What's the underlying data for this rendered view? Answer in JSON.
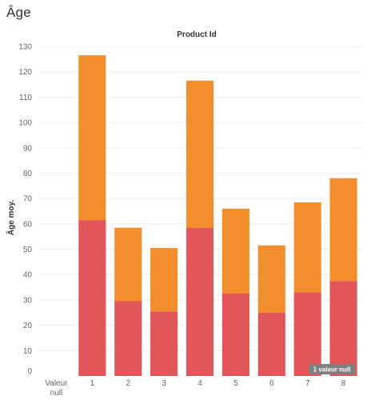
{
  "page": {
    "title": "Âge"
  },
  "chart_data": {
    "type": "bar",
    "stacked": true,
    "title": "Product Id",
    "xlabel": "",
    "ylabel": "Âge moy.",
    "ylim": [
      0,
      130
    ],
    "yticks": [
      0,
      10,
      20,
      30,
      40,
      50,
      60,
      70,
      80,
      90,
      100,
      110,
      120,
      130
    ],
    "categories": [
      "Valeur\nnull",
      "1",
      "2",
      "3",
      "4",
      "5",
      "6",
      "7",
      "8"
    ],
    "series": [
      {
        "values": [
          null,
          61.5,
          29.5,
          25.5,
          58.5,
          32.5,
          25,
          33,
          37.5
        ],
        "color": "#e15759"
      },
      {
        "values": [
          null,
          65,
          29,
          25,
          58,
          33.5,
          26.5,
          35.5,
          40.5
        ],
        "color": "#f28e2b"
      }
    ],
    "grid": true,
    "null_badge": "1 valeur null"
  }
}
